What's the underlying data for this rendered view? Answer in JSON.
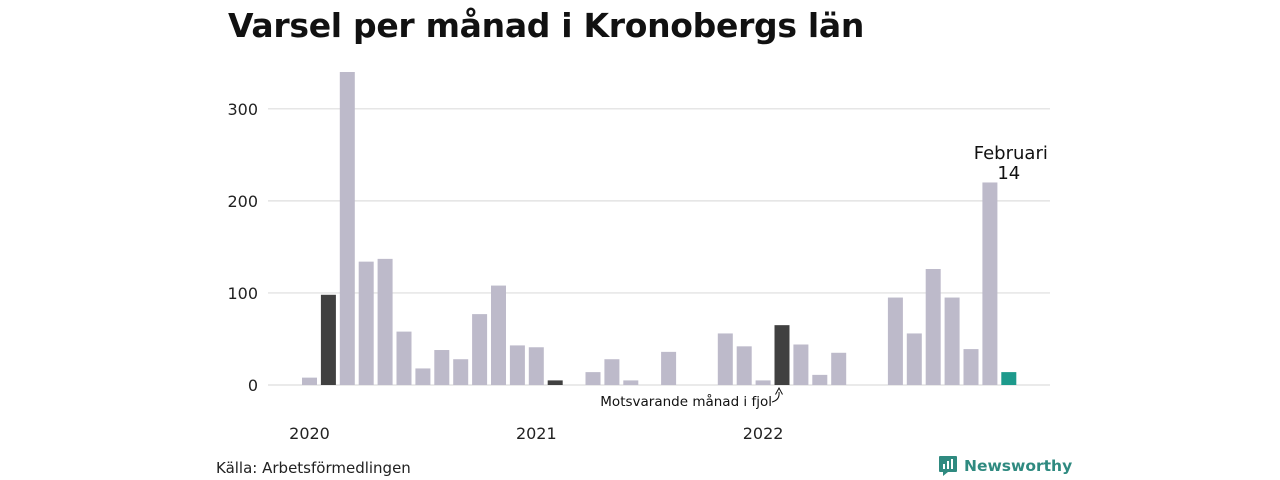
{
  "title": "Varsel per månad i Kronobergs län",
  "source": "Källa: Arbetsförmedlingen",
  "brand": {
    "name": "Newsworthy",
    "icon": "newsworthy-logo-icon"
  },
  "colors": {
    "bar": "#bdbaca",
    "reference": "#404040",
    "current": "#1d9a8c",
    "grid": "#dddddd",
    "brand": "#2f8a80"
  },
  "chart_data": {
    "type": "bar",
    "title": "Varsel per månad i Kronobergs län",
    "xlabel": "",
    "ylabel": "",
    "ylim": [
      0,
      340
    ],
    "yticks": [
      0,
      100,
      200,
      300
    ],
    "grid": true,
    "x_year_labels": [
      {
        "label": "2020",
        "index": 0
      },
      {
        "label": "2021",
        "index": 12
      },
      {
        "label": "2022",
        "index": 24
      }
    ],
    "categories": [
      "2020-01",
      "2020-02",
      "2020-03",
      "2020-04",
      "2020-05",
      "2020-06",
      "2020-07",
      "2020-08",
      "2020-09",
      "2020-10",
      "2020-11",
      "2020-12",
      "2021-01",
      "2021-02",
      "2021-03",
      "2021-04",
      "2021-05",
      "2021-06",
      "2021-07",
      "2021-08",
      "2021-09",
      "2021-10",
      "2021-11",
      "2021-12",
      "2022-01",
      "2022-02",
      "2022-03",
      "2022-04",
      "2022-05",
      "2022-06",
      "2022-07",
      "2022-08",
      "2022-09",
      "2022-10",
      "2022-11",
      "2022-12",
      "2023-01",
      "2023-02"
    ],
    "values": [
      8,
      98,
      340,
      134,
      137,
      58,
      18,
      38,
      28,
      77,
      108,
      43,
      41,
      5,
      0,
      14,
      28,
      5,
      0,
      36,
      0,
      0,
      56,
      42,
      5,
      65,
      44,
      11,
      35,
      0,
      0,
      95,
      56,
      126,
      95,
      39,
      220,
      14
    ],
    "highlights": [
      {
        "index": 1,
        "role": "reference"
      },
      {
        "index": 13,
        "role": "reference"
      },
      {
        "index": 25,
        "role": "reference"
      },
      {
        "index": 37,
        "role": "current"
      }
    ],
    "annotations": [
      {
        "index": 37,
        "label": "Februari",
        "value_label": "14"
      },
      {
        "index": 25,
        "label": "Motsvarande månad i fjol"
      }
    ]
  }
}
